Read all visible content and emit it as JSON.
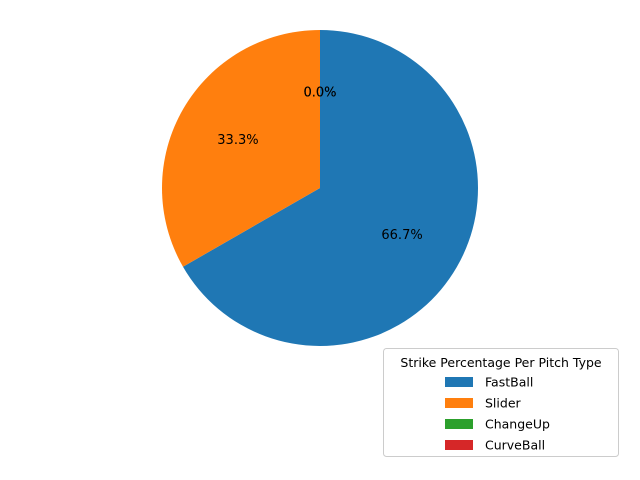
{
  "chart_data": {
    "type": "pie",
    "categories": [
      "FastBall",
      "Slider",
      "ChangeUp",
      "CurveBall"
    ],
    "values": [
      66.7,
      33.3,
      0.0,
      0.0
    ],
    "labels": [
      "66.7%",
      "33.3%",
      "0.0%",
      "0.0%"
    ],
    "colors": [
      "#1f77b4",
      "#ff7f0e",
      "#2ca02c",
      "#d62728"
    ],
    "legend_title": "Strike Percentage Per Pitch Type",
    "legend_position": "lower-right",
    "start_angle_deg": 90,
    "direction": "clockwise"
  }
}
